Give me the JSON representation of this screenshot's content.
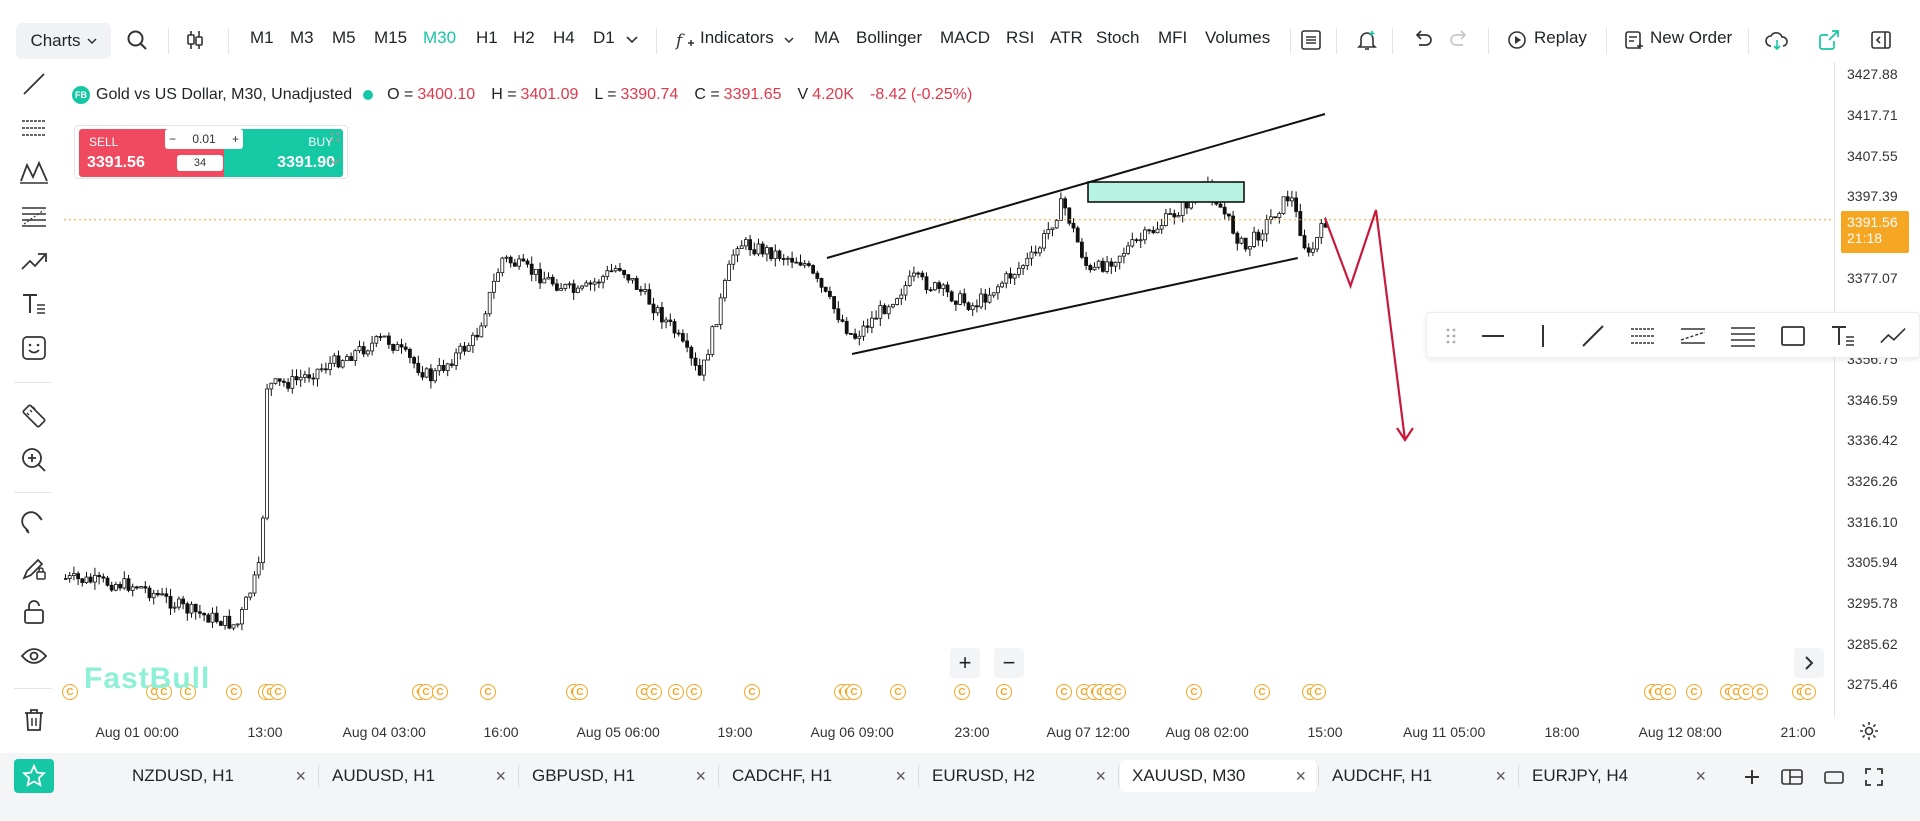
{
  "toolbar": {
    "charts_label": "Charts",
    "timeframes": [
      {
        "label": "M1",
        "active": false
      },
      {
        "label": "M3",
        "active": false
      },
      {
        "label": "M5",
        "active": false
      },
      {
        "label": "M15",
        "active": false
      },
      {
        "label": "M30",
        "active": true
      },
      {
        "label": "H1",
        "active": false
      },
      {
        "label": "H2",
        "active": false
      },
      {
        "label": "H4",
        "active": false
      },
      {
        "label": "D1",
        "active": false
      }
    ],
    "indicators_label": "Indicators",
    "indicator_shortcuts": [
      "MA",
      "Bollinger",
      "MACD",
      "RSI",
      "ATR",
      "Stoch",
      "MFI",
      "Volumes"
    ],
    "replay_label": "Replay",
    "new_order_label": "New Order"
  },
  "legend": {
    "badge": "FB",
    "title": "Gold vs US Dollar, M30, Unadjusted",
    "o_label": "O =",
    "o_value": "3400.10",
    "h_label": "H =",
    "h_value": "3401.09",
    "l_label": "L =",
    "l_value": "3390.74",
    "c_label": "C =",
    "c_value": "3391.65",
    "v_label": "V",
    "v_value": "4.20K",
    "change": "-8.42 (-0.25%)"
  },
  "trade": {
    "sell_label": "SELL",
    "sell_price": "3391.56",
    "buy_label": "BUY",
    "buy_price": "3391.90",
    "quantity": "0.01",
    "spread": "34"
  },
  "price_axis": {
    "labels": [
      "3427.88",
      "3417.71",
      "3407.55",
      "3397.39",
      "3377.07",
      "3356.75",
      "3346.59",
      "3336.42",
      "3326.26",
      "3316.10",
      "3305.94",
      "3295.78",
      "3285.62",
      "3275.46"
    ],
    "current_price": "3391.56",
    "countdown": "21:18"
  },
  "time_axis": {
    "labels": [
      "Aug 01 00:00",
      "13:00",
      "Aug 04 03:00",
      "16:00",
      "Aug 05 06:00",
      "19:00",
      "Aug 06 09:00",
      "23:00",
      "Aug 07 12:00",
      "Aug 08 02:00",
      "15:00",
      "Aug 11 05:00",
      "18:00",
      "Aug 12 08:00",
      "21:00"
    ]
  },
  "watermark": "FastBull",
  "event_marker_glyph": "C",
  "tabs": [
    {
      "label": "NZDUSD, H1",
      "active": false
    },
    {
      "label": "AUDUSD, H1",
      "active": false
    },
    {
      "label": "GBPUSD, H1",
      "active": false
    },
    {
      "label": "CADCHF, H1",
      "active": false
    },
    {
      "label": "EURUSD, H2",
      "active": false
    },
    {
      "label": "XAUUSD, M30",
      "active": true
    },
    {
      "label": "AUDCHF, H1",
      "active": false
    },
    {
      "label": "EURJPY, H4",
      "active": false
    }
  ],
  "colors": {
    "accent": "#16c7a5",
    "sell": "#ef4a5f",
    "buy": "#14c9a4",
    "bear_red": "#e0384d",
    "current_price": "#f5a623",
    "zone_fill": "#b6f3e2",
    "projection_arrow": "#c8193c"
  },
  "chart_data": {
    "type": "candlestick",
    "symbol": "XAUUSD",
    "timeframe": "M30",
    "ylim": [
      3270,
      3432
    ],
    "current_price": 3391.56,
    "last_ohlc": {
      "open": 3400.1,
      "high": 3401.09,
      "low": 3390.74,
      "close": 3391.65
    },
    "close_path": [
      {
        "t": "Aug 01 00:00",
        "price": 3300
      },
      {
        "t": "Aug 01 05:00",
        "price": 3294
      },
      {
        "t": "Aug 01 10:00",
        "price": 3290
      },
      {
        "t": "Aug 01 12:30",
        "price": 3306
      },
      {
        "t": "Aug 01 13:00",
        "price": 3350
      },
      {
        "t": "Aug 01 16:00",
        "price": 3351
      },
      {
        "t": "Aug 04 03:00",
        "price": 3362
      },
      {
        "t": "Aug 04 08:00",
        "price": 3352
      },
      {
        "t": "Aug 04 13:00",
        "price": 3362
      },
      {
        "t": "Aug 04 16:00",
        "price": 3382
      },
      {
        "t": "Aug 05 01:00",
        "price": 3373
      },
      {
        "t": "Aug 05 06:00",
        "price": 3380
      },
      {
        "t": "Aug 05 12:00",
        "price": 3364
      },
      {
        "t": "Aug 05 15:00",
        "price": 3352
      },
      {
        "t": "Aug 05 19:00",
        "price": 3386
      },
      {
        "t": "Aug 06 03:00",
        "price": 3381
      },
      {
        "t": "Aug 06 09:00",
        "price": 3362
      },
      {
        "t": "Aug 06 16:00",
        "price": 3377
      },
      {
        "t": "Aug 06 23:00",
        "price": 3370
      },
      {
        "t": "Aug 07 06:00",
        "price": 3383
      },
      {
        "t": "Aug 07 09:00",
        "price": 3396
      },
      {
        "t": "Aug 07 12:00",
        "price": 3378
      },
      {
        "t": "Aug 07 19:00",
        "price": 3388
      },
      {
        "t": "Aug 08 02:00",
        "price": 3400
      },
      {
        "t": "Aug 08 06:00",
        "price": 3384
      },
      {
        "t": "Aug 08 11:00",
        "price": 3398
      },
      {
        "t": "Aug 08 13:00",
        "price": 3382
      },
      {
        "t": "Aug 08 15:00",
        "price": 3391.65
      }
    ],
    "drawings": {
      "channel_upper": [
        {
          "t": "Aug 06 09:00",
          "price": 3381
        },
        {
          "t": "Aug 08 15:00",
          "price": 3418
        }
      ],
      "channel_lower": [
        {
          "t": "Aug 06 09:00",
          "price": 3358
        },
        {
          "t": "Aug 08 12:00",
          "price": 3382
        }
      ],
      "resistance_zone": {
        "from": "Aug 07 12:00",
        "to": "Aug 11 05:00",
        "top": 3401,
        "bottom": 3396
      },
      "projection": [
        {
          "t": "Aug 08 15:00",
          "price": 3392
        },
        {
          "t": "Aug 08 18:00",
          "price": 3375
        },
        {
          "t": "Aug 08 21:00",
          "price": 3394
        },
        {
          "t": "Aug 11 05:00",
          "price": 3337
        }
      ]
    }
  }
}
